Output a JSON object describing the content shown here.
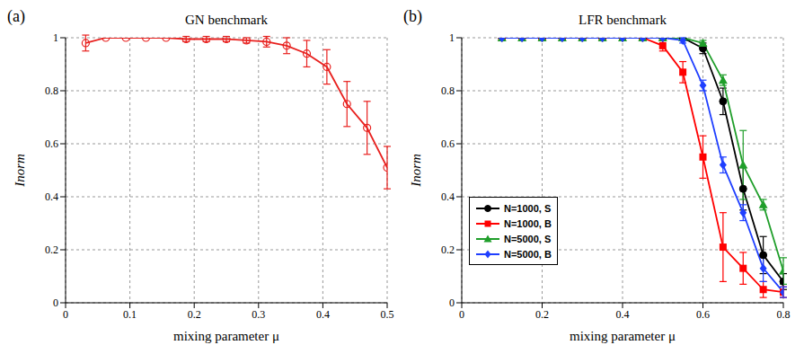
{
  "chart_data": [
    {
      "type": "line",
      "annotations": [
        "(a)"
      ],
      "title": "GN benchmark",
      "x_label": "mixing parameter μ",
      "y_label": "Inorm",
      "x": [
        0.03125,
        0.0625,
        0.09375,
        0.125,
        0.15625,
        0.1875,
        0.21875,
        0.25,
        0.28125,
        0.3125,
        0.34375,
        0.375,
        0.40625,
        0.4375,
        0.46875,
        0.5
      ],
      "series": [
        {
          "color": "#e8201e",
          "marker": "open_circle",
          "values": [
            0.98,
            1.0,
            1.0,
            1.0,
            1.0,
            0.995,
            0.995,
            0.995,
            0.99,
            0.985,
            0.97,
            0.94,
            0.89,
            0.75,
            0.66,
            0.51
          ],
          "errors": [
            0.03,
            0,
            0,
            0,
            0,
            0.01,
            0.01,
            0.01,
            0.01,
            0.02,
            0.03,
            0.05,
            0.065,
            0.085,
            0.1,
            0.08
          ]
        }
      ],
      "xlim": [
        0,
        0.5
      ],
      "xticks": [
        0,
        0.1,
        0.2,
        0.3,
        0.4,
        0.5
      ],
      "ylim": [
        0,
        1
      ],
      "yticks": [
        0,
        0.2,
        0.4,
        0.6,
        0.8,
        1
      ],
      "grid": true
    },
    {
      "type": "line",
      "annotations": [
        "(b)"
      ],
      "title": "LFR benchmark",
      "x_label": "mixing parameter μ",
      "y_label": "Inorm",
      "x": [
        0.1,
        0.15,
        0.2,
        0.25,
        0.3,
        0.35,
        0.4,
        0.45,
        0.5,
        0.55,
        0.6,
        0.65,
        0.7,
        0.75,
        0.8
      ],
      "series": [
        {
          "name": "N=1000, S",
          "color": "#000000",
          "marker": "circle",
          "values": [
            1,
            1,
            1,
            1,
            1,
            1,
            1,
            1,
            1,
            1,
            0.96,
            0.76,
            0.43,
            0.18,
            0.08
          ],
          "errors": [
            0,
            0,
            0,
            0,
            0,
            0,
            0,
            0,
            0,
            0,
            0.02,
            0.05,
            0.08,
            0.07,
            0.03
          ]
        },
        {
          "name": "N=1000, B",
          "color": "#ff0000",
          "marker": "square",
          "values": [
            1,
            1,
            1,
            1,
            1,
            1,
            1,
            1,
            0.97,
            0.87,
            0.55,
            0.21,
            0.13,
            0.05,
            0.04
          ],
          "errors": [
            0,
            0,
            0,
            0,
            0,
            0,
            0,
            0,
            0.02,
            0.04,
            0.08,
            0.13,
            0.06,
            0.03,
            0.02
          ]
        },
        {
          "name": "N=5000, S",
          "color": "#1f9e2a",
          "marker": "triangle",
          "values": [
            1,
            1,
            1,
            1,
            1,
            1,
            1,
            1,
            1,
            1,
            0.98,
            0.84,
            0.52,
            0.37,
            0.12
          ],
          "errors": [
            0,
            0,
            0,
            0,
            0,
            0,
            0,
            0,
            0,
            0,
            0.01,
            0.02,
            0.13,
            0.02,
            0.05
          ]
        },
        {
          "name": "N=5000, B",
          "color": "#1f3fff",
          "marker": "diamond",
          "values": [
            1,
            1,
            1,
            1,
            1,
            1,
            1,
            1,
            1,
            0.99,
            0.82,
            0.52,
            0.34,
            0.13,
            0.04
          ],
          "errors": [
            0,
            0,
            0,
            0,
            0,
            0,
            0,
            0,
            0,
            0.01,
            0.02,
            0.03,
            0.03,
            0.05,
            0.02
          ]
        }
      ],
      "xlim": [
        0,
        0.8
      ],
      "xticks": [
        0,
        0.2,
        0.4,
        0.6,
        0.8
      ],
      "ylim": [
        0,
        1
      ],
      "yticks": [
        0,
        0.2,
        0.4,
        0.6,
        0.8,
        1
      ],
      "grid": true,
      "legend": "lower left"
    }
  ]
}
